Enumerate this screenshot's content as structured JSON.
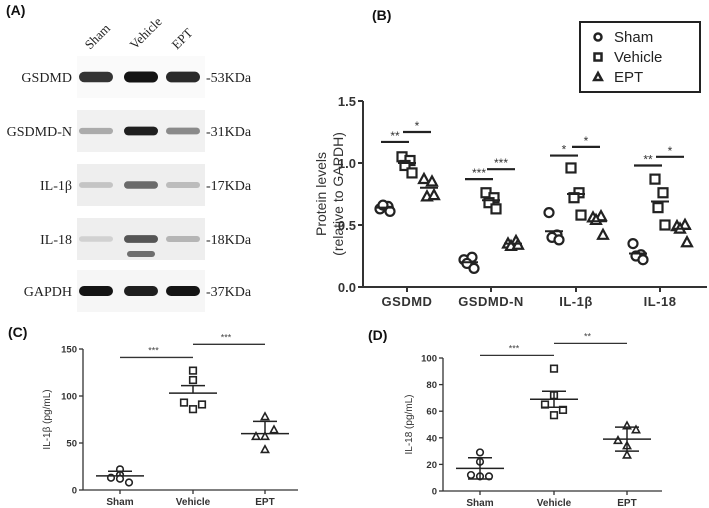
{
  "figure": {
    "panels": {
      "A": {
        "label": "(A)"
      },
      "B": {
        "label": "(B)"
      },
      "C": {
        "label": "(C)"
      },
      "D": {
        "label": "(D)"
      }
    }
  },
  "blot": {
    "lanes": [
      "Sham",
      "Vehicle",
      "EPT"
    ],
    "rows": [
      {
        "protein": "GSDMD",
        "size": "-53KDa",
        "intensity": [
          0.85,
          1.0,
          0.9
        ]
      },
      {
        "protein": "GSDMD-N",
        "size": "-31KDa",
        "intensity": [
          0.3,
          0.95,
          0.45
        ]
      },
      {
        "protein": "IL-1β",
        "size": "-17KDa",
        "intensity": [
          0.18,
          0.6,
          0.22
        ]
      },
      {
        "protein": "IL-18",
        "size": "-18KDa",
        "intensity": [
          0.12,
          0.7,
          0.25
        ]
      },
      {
        "protein": "GAPDH",
        "size": "-37KDa",
        "intensity": [
          1.0,
          0.95,
          1.0
        ]
      }
    ]
  },
  "chart_data": [
    {
      "panel": "B",
      "type": "scatter",
      "title": "",
      "xlabel": "",
      "ylabel": "Protein levels (relative to GAPDH)",
      "ylim": [
        0,
        1.5
      ],
      "yticks": [
        "0.0",
        "0.5",
        "1.0",
        "1.5"
      ],
      "categories": [
        "GSDMD",
        "GSDMD-N",
        "IL-1β",
        "IL-18"
      ],
      "legend": [
        {
          "name": "Sham",
          "marker": "circle"
        },
        {
          "name": "Vehicle",
          "marker": "square"
        },
        {
          "name": "EPT",
          "marker": "triangle"
        }
      ],
      "legend_position": "top-right",
      "series": [
        {
          "name": "Sham",
          "marker": "circle",
          "mean": [
            0.64,
            0.2,
            0.45,
            0.27
          ],
          "points": [
            [
              0.63,
              0.65,
              0.66,
              0.61
            ],
            [
              0.22,
              0.24,
              0.19,
              0.15
            ],
            [
              0.6,
              0.42,
              0.4,
              0.38
            ],
            [
              0.35,
              0.26,
              0.25,
              0.22
            ]
          ]
        },
        {
          "name": "Vehicle",
          "marker": "square",
          "mean": [
            1.0,
            0.7,
            0.75,
            0.69
          ],
          "points": [
            [
              1.05,
              1.02,
              0.98,
              0.92
            ],
            [
              0.76,
              0.72,
              0.68,
              0.63
            ],
            [
              0.96,
              0.76,
              0.72,
              0.58
            ],
            [
              0.87,
              0.76,
              0.64,
              0.5
            ]
          ]
        },
        {
          "name": "EPT",
          "marker": "triangle",
          "mean": [
            0.8,
            0.35,
            0.53,
            0.47
          ],
          "points": [
            [
              0.87,
              0.85,
              0.73,
              0.74
            ],
            [
              0.35,
              0.37,
              0.33,
              0.34
            ],
            [
              0.56,
              0.57,
              0.54,
              0.42
            ],
            [
              0.49,
              0.5,
              0.47,
              0.36
            ]
          ]
        }
      ],
      "significance": [
        {
          "category": "GSDMD",
          "pair": [
            "Sham",
            "Vehicle"
          ],
          "label": "**",
          "y": 1.17
        },
        {
          "category": "GSDMD",
          "pair": [
            "Vehicle",
            "EPT"
          ],
          "label": "*",
          "y": 1.25
        },
        {
          "category": "GSDMD-N",
          "pair": [
            "Sham",
            "Vehicle"
          ],
          "label": "***",
          "y": 0.87
        },
        {
          "category": "GSDMD-N",
          "pair": [
            "Vehicle",
            "EPT"
          ],
          "label": "***",
          "y": 0.95
        },
        {
          "category": "IL-1β",
          "pair": [
            "Sham",
            "Vehicle"
          ],
          "label": "*",
          "y": 1.06
        },
        {
          "category": "IL-1β",
          "pair": [
            "Vehicle",
            "EPT"
          ],
          "label": "*",
          "y": 1.13
        },
        {
          "category": "IL-18",
          "pair": [
            "Sham",
            "Vehicle"
          ],
          "label": "**",
          "y": 0.98
        },
        {
          "category": "IL-18",
          "pair": [
            "Vehicle",
            "EPT"
          ],
          "label": "*",
          "y": 1.05
        }
      ]
    },
    {
      "panel": "C",
      "type": "scatter",
      "title": "",
      "xlabel": "",
      "ylabel": "IL-1β  (pg/mL)",
      "ylim": [
        0,
        150
      ],
      "yticks": [
        "0",
        "50",
        "100",
        "150"
      ],
      "categories": [
        "Sham",
        "Vehicle",
        "EPT"
      ],
      "series": [
        {
          "name": "Sham",
          "marker": "circle",
          "points": [
            22,
            16,
            13,
            12,
            8
          ],
          "mean": 15,
          "sem_upper": 20
        },
        {
          "name": "Vehicle",
          "marker": "square",
          "points": [
            127,
            117,
            93,
            91,
            86
          ],
          "mean": 103,
          "sem_upper": 111
        },
        {
          "name": "EPT",
          "marker": "triangle",
          "points": [
            78,
            64,
            57,
            57,
            43
          ],
          "mean": 60,
          "sem_upper": 73
        }
      ],
      "significance": [
        {
          "pair": [
            "Sham",
            "Vehicle"
          ],
          "label": "***",
          "y": 141
        },
        {
          "pair": [
            "Vehicle",
            "EPT"
          ],
          "label": "***",
          "y": 155
        }
      ]
    },
    {
      "panel": "D",
      "type": "scatter",
      "title": "",
      "xlabel": "",
      "ylabel": "IL-18 (pg/mL)",
      "ylim": [
        0,
        100
      ],
      "yticks": [
        "0",
        "20",
        "40",
        "60",
        "80",
        "100"
      ],
      "categories": [
        "Sham",
        "Vehicle",
        "EPT"
      ],
      "series": [
        {
          "name": "Sham",
          "marker": "circle",
          "points": [
            29,
            22,
            12,
            11,
            11
          ],
          "mean": 17,
          "sem_upper": 25,
          "sem_lower": 9
        },
        {
          "name": "Vehicle",
          "marker": "square",
          "points": [
            92,
            72,
            65,
            61,
            57
          ],
          "mean": 69,
          "sem_upper": 75,
          "sem_lower": 63
        },
        {
          "name": "EPT",
          "marker": "triangle",
          "points": [
            49,
            46,
            38,
            34,
            27
          ],
          "mean": 39,
          "sem_upper": 48,
          "sem_lower": 30
        }
      ],
      "significance": [
        {
          "pair": [
            "Sham",
            "Vehicle"
          ],
          "label": "***",
          "y": 102
        },
        {
          "pair": [
            "Vehicle",
            "EPT"
          ],
          "label": "**",
          "y": 111
        }
      ]
    }
  ]
}
